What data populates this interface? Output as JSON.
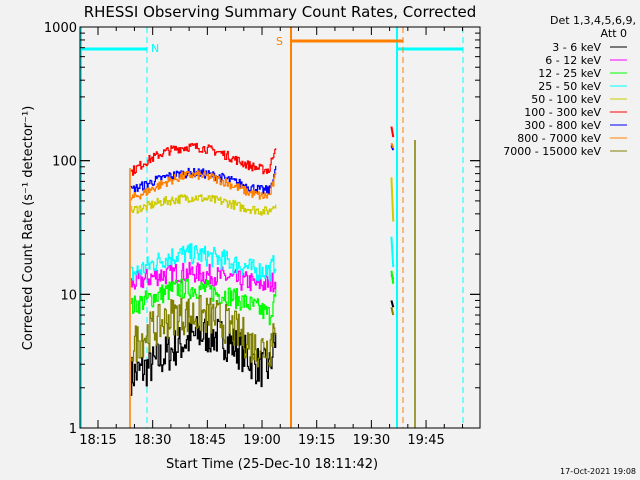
{
  "chart_data": {
    "type": "line",
    "title": "RHESSI Observing Summary Count Rates, Corrected",
    "xlabel": "Start Time (25-Dec-10 18:11:42)",
    "ylabel": "Corrected Count Rate (s⁻¹ detector⁻¹)",
    "yscale": "log",
    "ylim": [
      1,
      1000
    ],
    "xlim_minutes_after_18h": [
      10,
      120
    ],
    "x_ticks": [
      {
        "label": "18:15",
        "min": 15
      },
      {
        "label": "18:30",
        "min": 30
      },
      {
        "label": "18:45",
        "min": 45
      },
      {
        "label": "19:00",
        "min": 60
      },
      {
        "label": "19:15",
        "min": 75
      },
      {
        "label": "19:30",
        "min": 90
      },
      {
        "label": "19:45",
        "min": 105
      }
    ],
    "y_ticks": [
      {
        "label": "1",
        "value": 1
      },
      {
        "label": "10",
        "value": 10
      },
      {
        "label": "100",
        "value": 100
      },
      {
        "label": "1000",
        "value": 1000
      }
    ],
    "legend": {
      "position": "right",
      "header": [
        "Det 1,3,4,5,6,9,",
        "Att 0"
      ]
    },
    "x": [
      24,
      26,
      28,
      30,
      32,
      34,
      36,
      38,
      40,
      42,
      44,
      46,
      48,
      50,
      52,
      54,
      56,
      58,
      60,
      62,
      64
    ],
    "x_burst": [
      95.5,
      96.0
    ],
    "series": [
      {
        "name": "3 - 6 keV",
        "color": "#000000",
        "values": [
          2.5,
          2.6,
          2.8,
          3,
          3.3,
          3.6,
          4,
          4.3,
          4.6,
          5,
          5,
          5,
          4.8,
          4.5,
          4.2,
          3.8,
          3.4,
          3,
          2.8,
          2.8,
          5
        ],
        "burst": [
          9,
          8
        ]
      },
      {
        "name": "6 - 12 keV",
        "color": "#ff00ff",
        "values": [
          12,
          12.5,
          13,
          13.5,
          14,
          14,
          14.5,
          14.5,
          14.5,
          14.5,
          14,
          14,
          13.5,
          13.5,
          13,
          12.5,
          12.5,
          12,
          12,
          12,
          13
        ],
        "burst": [
          14,
          13
        ]
      },
      {
        "name": "12 - 25 keV",
        "color": "#00ff00",
        "values": [
          8,
          8.5,
          9,
          9.5,
          10,
          10.5,
          11,
          11,
          11,
          11,
          11,
          10.5,
          10,
          10,
          9.5,
          9,
          8.5,
          8,
          7.5,
          7,
          10
        ],
        "burst": [
          15,
          12
        ]
      },
      {
        "name": "25 - 50 keV",
        "color": "#00ffff",
        "values": [
          14,
          15,
          16,
          17,
          18,
          19,
          19.5,
          20,
          20,
          20,
          19.5,
          19,
          18.5,
          18,
          17,
          16.5,
          16,
          15,
          15,
          15,
          18
        ],
        "burst": [
          27,
          16
        ]
      },
      {
        "name": "50 - 100 keV",
        "color": "#cccc00",
        "values": [
          42,
          44,
          45,
          47,
          49,
          50,
          51,
          52,
          53,
          53,
          52,
          51,
          50,
          49,
          47,
          45,
          44,
          43,
          42,
          42,
          50
        ],
        "burst": [
          75,
          35
        ]
      },
      {
        "name": "100 - 300 keV",
        "color": "#ff0000",
        "values": [
          82,
          90,
          98,
          105,
          112,
          118,
          122,
          125,
          127,
          126,
          124,
          120,
          116,
          110,
          104,
          98,
          93,
          89,
          86,
          85,
          140
        ],
        "burst": [
          180,
          150
        ]
      },
      {
        "name": "300 - 800 keV",
        "color": "#0000ff",
        "values": [
          60,
          63,
          66,
          70,
          73,
          76,
          78,
          80,
          81,
          81,
          80,
          78,
          76,
          73,
          70,
          67,
          64,
          62,
          60,
          60,
          90
        ],
        "burst": [
          130,
          120
        ]
      },
      {
        "name": "800 - 7000 keV",
        "color": "#ff8000",
        "values": [
          52,
          55,
          58,
          62,
          66,
          70,
          73,
          76,
          78,
          78,
          77,
          75,
          72,
          69,
          65,
          62,
          58,
          56,
          54,
          55,
          80
        ],
        "burst": [
          135,
          125
        ]
      },
      {
        "name": "7000 - 15000 keV",
        "color": "#808000",
        "values": [
          4,
          4.5,
          5,
          5.5,
          6,
          6.5,
          7,
          7,
          7,
          7,
          7,
          6.8,
          6.5,
          6,
          5.5,
          5,
          4.5,
          4,
          4,
          4,
          7
        ],
        "burst": [
          8,
          7
        ]
      }
    ],
    "annotations": {
      "night_label": "N",
      "saa_label": "S",
      "night_color": "#00ffff",
      "saa_color": "#ff8000"
    }
  },
  "footer": {
    "timestamp": "17-Oct-2021 19:08"
  }
}
